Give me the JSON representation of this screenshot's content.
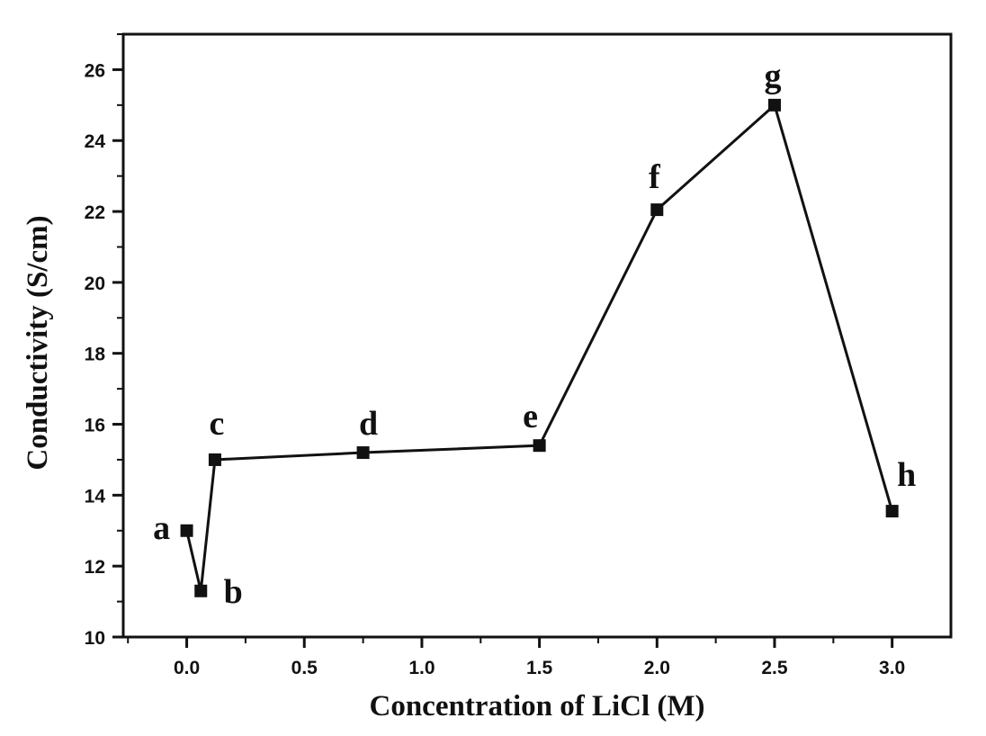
{
  "chart_data": {
    "type": "line",
    "xlabel": "Concentration of LiCl (M)",
    "ylabel": "Conductivity (S/cm)",
    "xlim": [
      -0.27,
      3.25
    ],
    "ylim": [
      10,
      27
    ],
    "x_ticks": [
      0.0,
      0.5,
      1.0,
      1.5,
      2.0,
      2.5,
      3.0
    ],
    "x_tick_labels": [
      "0.0",
      "0.5",
      "1.0",
      "1.5",
      "2.0",
      "2.5",
      "3.0"
    ],
    "y_ticks": [
      10,
      12,
      14,
      16,
      18,
      20,
      22,
      24,
      26
    ],
    "y_tick_labels": [
      "10",
      "12",
      "14",
      "16",
      "18",
      "20",
      "22",
      "24",
      "26"
    ],
    "grid": false,
    "series": [
      {
        "marker": "square",
        "color": "#111111",
        "points": [
          {
            "label": "a",
            "x": 0.0,
            "y": 13.0
          },
          {
            "label": "b",
            "x": 0.06,
            "y": 11.3
          },
          {
            "label": "c",
            "x": 0.12,
            "y": 15.0
          },
          {
            "label": "d",
            "x": 0.75,
            "y": 15.2
          },
          {
            "label": "e",
            "x": 1.5,
            "y": 15.4
          },
          {
            "label": "f",
            "x": 2.0,
            "y": 22.05
          },
          {
            "label": "g",
            "x": 2.5,
            "y": 25.0
          },
          {
            "label": "h",
            "x": 3.0,
            "y": 13.55
          }
        ]
      }
    ]
  }
}
